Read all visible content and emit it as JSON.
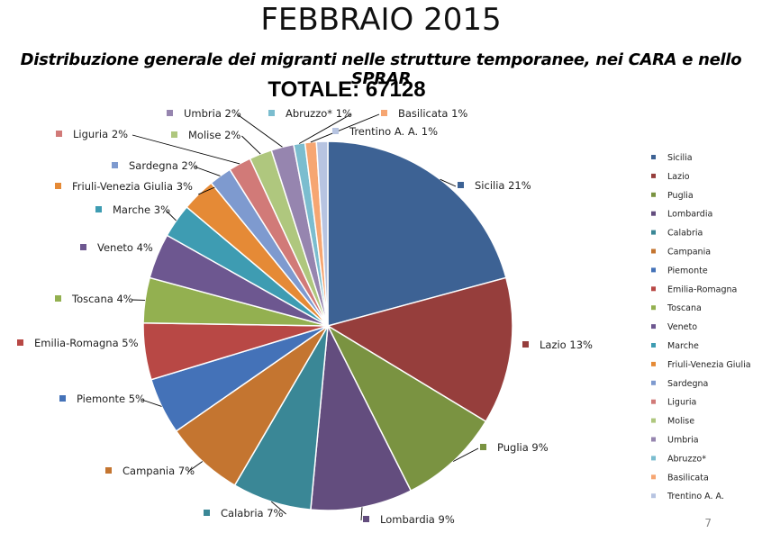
{
  "title": "FEBBRAIO 2015",
  "subtitle": "Distribuzione generale dei migranti nelle strutture temporanee, nei CARA e nello SPRAR",
  "total_label": "TOTALE: 67128",
  "page_number": "7",
  "chart_data": {
    "type": "pie",
    "legend_position": "right",
    "slices": [
      {
        "name": "Sicilia",
        "label": "Sicilia 21%",
        "value": 21,
        "color": "#3D6294"
      },
      {
        "name": "Lazio",
        "label": "Lazio 13%",
        "value": 13,
        "color": "#963E3C"
      },
      {
        "name": "Puglia",
        "label": "Puglia 9%",
        "value": 9,
        "color": "#7A9341"
      },
      {
        "name": "Lombardia",
        "label": "Lombardia 9%",
        "value": 9,
        "color": "#634D7E"
      },
      {
        "name": "Calabria",
        "label": "Calabria 7%",
        "value": 7,
        "color": "#3A8796"
      },
      {
        "name": "Campania",
        "label": "Campania 7%",
        "value": 7,
        "color": "#C47530"
      },
      {
        "name": "Piemonte",
        "label": "Piemonte 5%",
        "value": 5,
        "color": "#4472B8"
      },
      {
        "name": "Emilia-Romagna",
        "label": "Emilia-Romagna 5%",
        "value": 5,
        "color": "#B84845"
      },
      {
        "name": "Toscana",
        "label": "Toscana 4%",
        "value": 4,
        "color": "#93B050"
      },
      {
        "name": "Veneto",
        "label": "Veneto 4%",
        "value": 4,
        "color": "#6D5790"
      },
      {
        "name": "Marche",
        "label": "Marche 3%",
        "value": 3,
        "color": "#3E9CB2"
      },
      {
        "name": "Friuli-Venezia Giulia",
        "label": "Friuli-Venezia Giulia 3%",
        "value": 3,
        "color": "#E58A36"
      },
      {
        "name": "Sardegna",
        "label": "Sardegna 2%",
        "value": 2,
        "color": "#7E9ACF"
      },
      {
        "name": "Liguria",
        "label": "Liguria 2%",
        "value": 2,
        "color": "#D17A78"
      },
      {
        "name": "Molise",
        "label": "Molise 2%",
        "value": 2,
        "color": "#AFC77E"
      },
      {
        "name": "Umbria",
        "label": "Umbria 2%",
        "value": 2,
        "color": "#9685AF"
      },
      {
        "name": "Abruzzo*",
        "label": "Abruzzo* 1%",
        "value": 1,
        "color": "#7BBDCF"
      },
      {
        "name": "Basilicata",
        "label": "Basilicata 1%",
        "value": 1,
        "color": "#F6A672"
      },
      {
        "name": "Trentino A. A.",
        "label": "Trentino A. A. 1%",
        "value": 1,
        "color": "#B7C4E1"
      }
    ]
  }
}
